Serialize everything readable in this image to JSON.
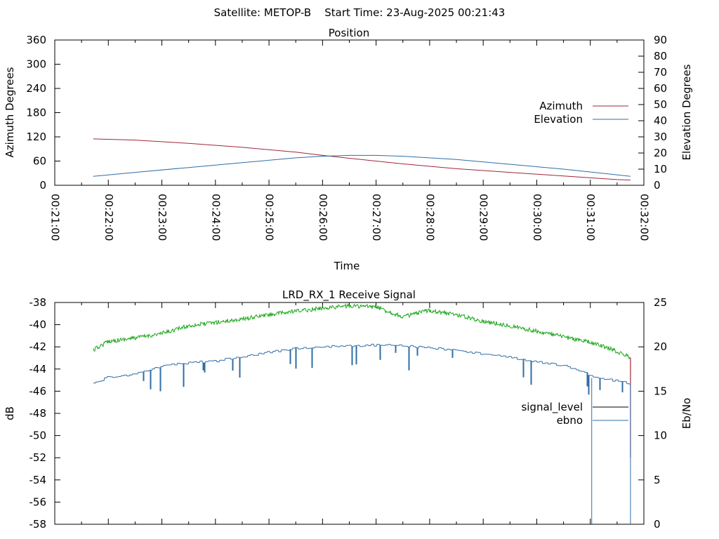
{
  "header": {
    "title": "Satellite: METOP-B    Start Time: 23-Aug-2025 00:21:43"
  },
  "colors": {
    "azimuth": "#a0263a",
    "elevation": "#2f6da6",
    "signal_level": "#1aa51a",
    "signal_legend": "#000000",
    "signal_drop": "#a0263a",
    "ebno": "#2f6da6"
  },
  "chart_data": [
    {
      "type": "line",
      "title": "Position",
      "xlabel": "Time",
      "ylabel": "Azimuth Degrees",
      "y2label": "Elevation Degrees",
      "xlim": [
        "00:21:00",
        "00:32:00"
      ],
      "x_ticks": [
        "00:21:00",
        "00:22:00",
        "00:23:00",
        "00:24:00",
        "00:25:00",
        "00:26:00",
        "00:27:00",
        "00:28:00",
        "00:29:00",
        "00:30:00",
        "00:31:00",
        "00:32:00"
      ],
      "ylim": [
        0,
        360
      ],
      "y_ticks": [
        "0",
        "60",
        "120",
        "180",
        "240",
        "300",
        "360"
      ],
      "y2lim": [
        0,
        90
      ],
      "y2_ticks": [
        "0",
        "10",
        "20",
        "30",
        "40",
        "50",
        "60",
        "70",
        "80",
        "90"
      ],
      "legend": "right",
      "series": [
        {
          "name": "Azimuth",
          "axis": "y",
          "x": [
            "00:21:43",
            "00:22:30",
            "00:23:30",
            "00:24:30",
            "00:25:30",
            "00:26:00",
            "00:26:30",
            "00:27:30",
            "00:28:30",
            "00:29:30",
            "00:30:30",
            "00:31:30",
            "00:31:45"
          ],
          "values": [
            115,
            112,
            104,
            94,
            82,
            74,
            67,
            53,
            41,
            32,
            23,
            14,
            13
          ]
        },
        {
          "name": "Elevation",
          "axis": "y2",
          "x": [
            "00:21:43",
            "00:22:30",
            "00:23:30",
            "00:24:30",
            "00:25:30",
            "00:26:00",
            "00:26:30",
            "00:27:00",
            "00:27:30",
            "00:28:30",
            "00:29:30",
            "00:30:30",
            "00:31:30",
            "00:31:45"
          ],
          "values": [
            5.5,
            8,
            11,
            14,
            17,
            18,
            18.5,
            18.5,
            18,
            16,
            13,
            10,
            6.5,
            5.5
          ]
        }
      ]
    },
    {
      "type": "line",
      "title": "LRD_RX_1 Receive Signal",
      "ylabel": "dB",
      "y2label": "Eb/No",
      "xlim": [
        "00:21:00",
        "00:32:00"
      ],
      "ylim": [
        -58,
        -38
      ],
      "y_ticks": [
        "-38",
        "-40",
        "-42",
        "-44",
        "-46",
        "-48",
        "-50",
        "-52",
        "-54",
        "-56",
        "-58"
      ],
      "y2lim": [
        0,
        25
      ],
      "y2_ticks": [
        "0",
        "5",
        "10",
        "15",
        "20",
        "25"
      ],
      "legend": "right",
      "series": [
        {
          "name": "signal_level",
          "axis": "y",
          "x": [
            "00:21:43",
            "00:22:00",
            "00:22:30",
            "00:23:00",
            "00:23:30",
            "00:24:00",
            "00:24:30",
            "00:25:00",
            "00:25:30",
            "00:26:00",
            "00:26:30",
            "00:27:00",
            "00:27:30",
            "00:28:00",
            "00:28:30",
            "00:29:00",
            "00:29:30",
            "00:30:00",
            "00:30:30",
            "00:31:00",
            "00:31:20",
            "00:31:35",
            "00:31:45"
          ],
          "values": [
            -42.3,
            -41.5,
            -41.2,
            -40.8,
            -40.1,
            -39.8,
            -39.5,
            -39.1,
            -38.8,
            -38.5,
            -38.3,
            -38.4,
            -39.3,
            -38.7,
            -39.1,
            -39.7,
            -40.1,
            -40.6,
            -41.1,
            -41.6,
            -42.1,
            -42.6,
            -43.0
          ]
        },
        {
          "name": "ebno",
          "axis": "y2",
          "x": [
            "00:21:43",
            "00:22:00",
            "00:22:30",
            "00:23:00",
            "00:23:30",
            "00:24:00",
            "00:24:30",
            "00:25:00",
            "00:25:30",
            "00:26:00",
            "00:26:30",
            "00:27:00",
            "00:27:30",
            "00:28:00",
            "00:28:30",
            "00:29:00",
            "00:29:30",
            "00:30:00",
            "00:30:30",
            "00:31:00",
            "00:31:20",
            "00:31:35",
            "00:31:45"
          ],
          "values": [
            15.8,
            16.6,
            16.9,
            17.9,
            18.2,
            18.4,
            18.9,
            19.4,
            19.8,
            20.0,
            20.1,
            20.2,
            20.1,
            19.9,
            19.6,
            19.2,
            18.8,
            18.3,
            17.9,
            16.8,
            16.3,
            16.1,
            15.8
          ]
        }
      ]
    }
  ]
}
